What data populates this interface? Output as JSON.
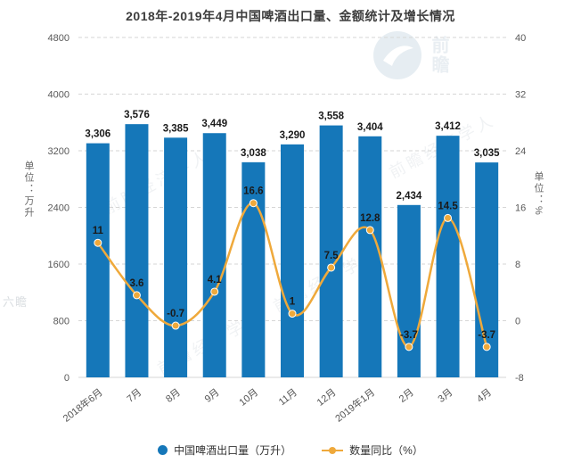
{
  "title": "2018年-2019年4月中国啤酒出口量、金额统计及增长情况",
  "watermark": {
    "brand": "前瞻经济学人",
    "logo_text": "前瞻",
    "side_text": "六瞻"
  },
  "chart_data": {
    "type": "combo",
    "subtype": "bar+line",
    "categories": [
      "2018年6月",
      "7月",
      "8月",
      "9月",
      "10月",
      "11月",
      "12月",
      "2019年1月",
      "2月",
      "3月",
      "4月"
    ],
    "series": [
      {
        "name": "中国啤酒出口量（万升）",
        "type": "bar",
        "axis": "left",
        "color": "#1577b9",
        "values": [
          3306,
          3576,
          3385,
          3449,
          3038,
          3290,
          3558,
          3404,
          2434,
          3412,
          3035
        ],
        "labels": [
          "3,306",
          "3,576",
          "3,385",
          "3,449",
          "3,038",
          "3,290",
          "3,558",
          "3,404",
          "2,434",
          "3,412",
          "3,035"
        ]
      },
      {
        "name": "数量同比（%）",
        "type": "line",
        "axis": "right",
        "color": "#efa93b",
        "values": [
          11,
          3.6,
          -0.7,
          4.1,
          16.6,
          1,
          7.5,
          12.8,
          -3.7,
          14.5,
          -3.7
        ],
        "labels": [
          "11",
          "3.6",
          "-0.7",
          "4.1",
          "16.6",
          "1",
          "7.5",
          "12.8",
          "-3.7",
          "14.5",
          "-3.7"
        ]
      }
    ],
    "left_axis": {
      "title": "单位：万升",
      "min": 0,
      "max": 4800,
      "ticks": [
        0,
        800,
        1600,
        2400,
        3200,
        4000,
        4800
      ]
    },
    "right_axis": {
      "title": "单位：%",
      "min": -8,
      "max": 40,
      "ticks": [
        -8,
        0,
        8,
        16,
        24,
        32,
        40
      ]
    },
    "legend": [
      "中国啤酒出口量（万升）",
      "数量同比（%）"
    ],
    "grid": "horizontal dashed",
    "legend_position": "bottom"
  }
}
